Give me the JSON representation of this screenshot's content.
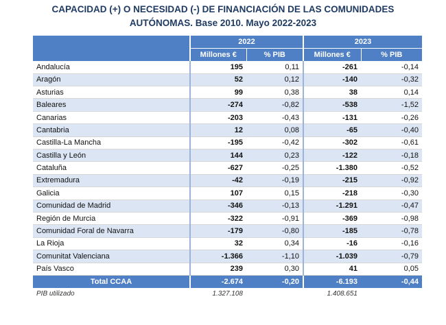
{
  "title": {
    "line1": "CAPACIDAD (+) O NECESIDAD (-) DE FINANCIACIÓN DE LAS COMUNIDADES",
    "line2": "AUTÓNOMAS. Base 2010. Mayo 2022-2023"
  },
  "headers": {
    "year1": "2022",
    "year2": "2023",
    "millones": "Millones €",
    "pib": "% PIB"
  },
  "rows": [
    {
      "name": "Andalucía",
      "m2022": "195",
      "p2022": "0,11",
      "m2023": "-261",
      "p2023": "-0,14"
    },
    {
      "name": "Aragón",
      "m2022": "52",
      "p2022": "0,12",
      "m2023": "-140",
      "p2023": "-0,32"
    },
    {
      "name": "Asturias",
      "m2022": "99",
      "p2022": "0,38",
      "m2023": "38",
      "p2023": "0,14"
    },
    {
      "name": "Baleares",
      "m2022": "-274",
      "p2022": "-0,82",
      "m2023": "-538",
      "p2023": "-1,52"
    },
    {
      "name": "Canarias",
      "m2022": "-203",
      "p2022": "-0,43",
      "m2023": "-131",
      "p2023": "-0,26"
    },
    {
      "name": "Cantabria",
      "m2022": "12",
      "p2022": "0,08",
      "m2023": "-65",
      "p2023": "-0,40"
    },
    {
      "name": "Castilla-La Mancha",
      "m2022": "-195",
      "p2022": "-0,42",
      "m2023": "-302",
      "p2023": "-0,61"
    },
    {
      "name": "Castilla y León",
      "m2022": "144",
      "p2022": "0,23",
      "m2023": "-122",
      "p2023": "-0,18"
    },
    {
      "name": "Cataluña",
      "m2022": "-627",
      "p2022": "-0,25",
      "m2023": "-1.380",
      "p2023": "-0,52"
    },
    {
      "name": "Extremadura",
      "m2022": "-42",
      "p2022": "-0,19",
      "m2023": "-215",
      "p2023": "-0,92"
    },
    {
      "name": "Galicia",
      "m2022": "107",
      "p2022": "0,15",
      "m2023": "-218",
      "p2023": "-0,30"
    },
    {
      "name": "Comunidad de Madrid",
      "m2022": "-346",
      "p2022": "-0,13",
      "m2023": "-1.291",
      "p2023": "-0,47"
    },
    {
      "name": "Región de Murcia",
      "m2022": "-322",
      "p2022": "-0,91",
      "m2023": "-369",
      "p2023": "-0,98"
    },
    {
      "name": "Comunidad Foral de Navarra",
      "m2022": "-179",
      "p2022": "-0,80",
      "m2023": "-185",
      "p2023": "-0,78"
    },
    {
      "name": "La Rioja",
      "m2022": "32",
      "p2022": "0,34",
      "m2023": "-16",
      "p2023": "-0,16"
    },
    {
      "name": "Comunitat Valenciana",
      "m2022": "-1.366",
      "p2022": "-1,10",
      "m2023": "-1.039",
      "p2023": "-0,79"
    },
    {
      "name": "País Vasco",
      "m2022": "239",
      "p2022": "0,30",
      "m2023": "41",
      "p2023": "0,05"
    }
  ],
  "total": {
    "name": "Total CCAA",
    "m2022": "-2.674",
    "p2022": "-0,20",
    "m2023": "-6.193",
    "p2023": "-0,44"
  },
  "pib_row": {
    "label": "PIB utilizado",
    "v2022": "1.327.108",
    "v2023": "1.408.651"
  }
}
